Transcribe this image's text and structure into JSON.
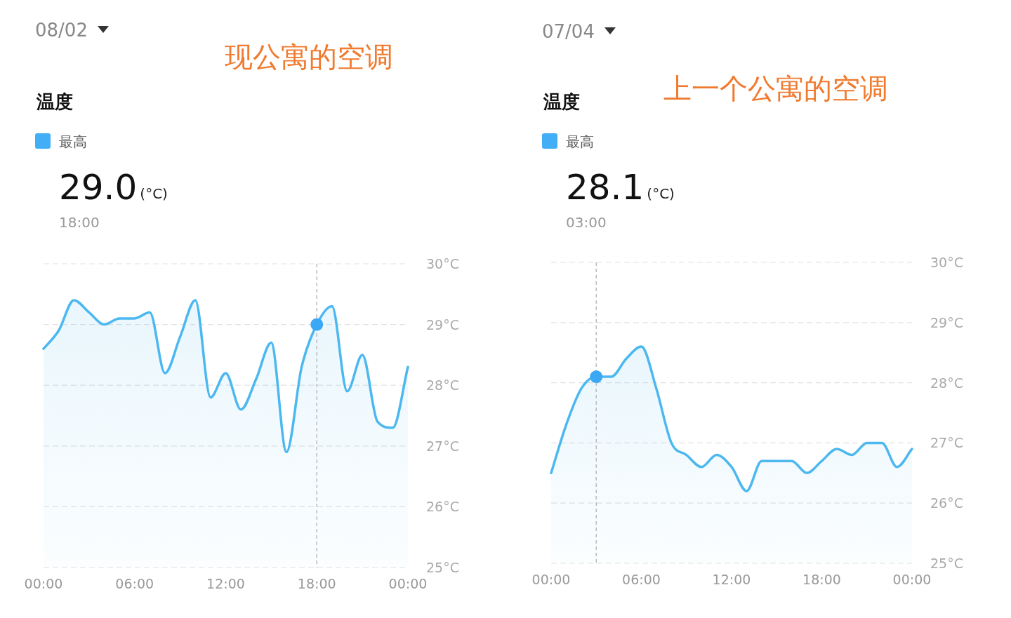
{
  "chart_data": [
    {
      "type": "area",
      "title": "现公寓的空调",
      "subtitle": "温度",
      "legend": "top left",
      "grid": "y",
      "annotations": [
        "08/02",
        "29.0",
        "(°C)",
        "18:00"
      ],
      "xlim": [
        0,
        24
      ],
      "ylim": [
        25,
        30
      ],
      "xticks": [
        {
          "value": 0,
          "label": "00:00"
        },
        {
          "value": 6,
          "label": "06:00"
        },
        {
          "value": 12,
          "label": "12:00"
        },
        {
          "value": 18,
          "label": "18:00"
        },
        {
          "value": 24,
          "label": "00:00"
        }
      ],
      "yticks": [
        {
          "value": 25,
          "label": "25°C"
        },
        {
          "value": 26,
          "label": "26°C"
        },
        {
          "value": 27,
          "label": "27°C"
        },
        {
          "value": 28,
          "label": "28°C"
        },
        {
          "value": 29,
          "label": "29°C"
        },
        {
          "value": 30,
          "label": "30°C"
        }
      ],
      "ref_lines": [
        {
          "axis": "x",
          "value": 18,
          "color": "#bbbbbb",
          "line_style": "dashed"
        }
      ],
      "series": [
        {
          "name": "最高",
          "color": "#4cb8f0",
          "x": [
            0,
            1,
            2,
            3,
            4,
            5,
            6,
            7,
            8,
            9,
            10,
            11,
            12,
            13,
            14,
            15,
            16,
            17,
            18,
            19,
            20,
            21,
            22,
            23,
            24
          ],
          "values": [
            28.6,
            28.9,
            29.4,
            29.2,
            29.0,
            29.1,
            29.1,
            29.2,
            28.2,
            28.8,
            29.4,
            27.8,
            28.2,
            27.6,
            28.1,
            28.7,
            26.9,
            28.3,
            29.0,
            29.3,
            27.9,
            28.5,
            27.4,
            27.3,
            28.3
          ]
        },
        {
          "type": "scatter",
          "color": "#3aa8f5",
          "x": [
            18
          ],
          "values": [
            29.0
          ]
        }
      ]
    },
    {
      "type": "area",
      "title": "上一个公寓的空调",
      "subtitle": "温度",
      "legend": "top left",
      "grid": "y",
      "annotations": [
        "07/04",
        "28.1",
        "(°C)",
        "03:00"
      ],
      "xlim": [
        0,
        24
      ],
      "ylim": [
        25,
        30
      ],
      "xticks": [
        {
          "value": 0,
          "label": "00:00"
        },
        {
          "value": 6,
          "label": "06:00"
        },
        {
          "value": 12,
          "label": "12:00"
        },
        {
          "value": 18,
          "label": "18:00"
        },
        {
          "value": 24,
          "label": "00:00"
        }
      ],
      "yticks": [
        {
          "value": 25,
          "label": "25°C"
        },
        {
          "value": 26,
          "label": "26°C"
        },
        {
          "value": 27,
          "label": "27°C"
        },
        {
          "value": 28,
          "label": "28°C"
        },
        {
          "value": 29,
          "label": "29°C"
        },
        {
          "value": 30,
          "label": "30°C"
        }
      ],
      "ref_lines": [
        {
          "axis": "x",
          "value": 3,
          "color": "#bbbbbb",
          "line_style": "dashed"
        }
      ],
      "series": [
        {
          "name": "最高",
          "color": "#4cb8f0",
          "x": [
            0,
            1,
            2,
            3,
            4,
            5,
            6,
            7,
            8,
            9,
            10,
            11,
            12,
            13,
            14,
            15,
            16,
            17,
            18,
            19,
            20,
            21,
            22,
            23,
            24
          ],
          "values": [
            26.5,
            27.3,
            27.9,
            28.1,
            28.1,
            28.4,
            28.6,
            27.9,
            27.0,
            26.8,
            26.6,
            26.8,
            26.6,
            26.2,
            26.7,
            26.7,
            26.7,
            26.5,
            26.7,
            26.9,
            26.8,
            27.0,
            27.0,
            26.6,
            26.9
          ]
        },
        {
          "type": "scatter",
          "color": "#3aa8f5",
          "x": [
            3
          ],
          "values": [
            28.1
          ]
        }
      ]
    }
  ]
}
